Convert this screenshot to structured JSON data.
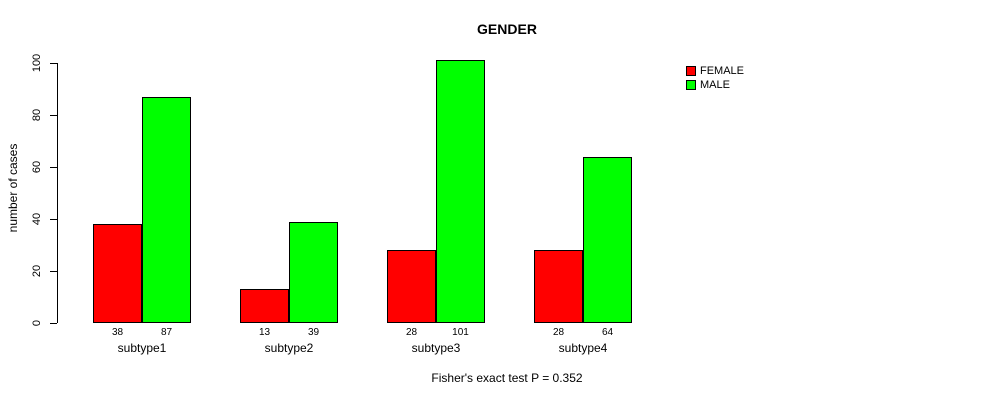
{
  "title": "GENDER",
  "chart_data": {
    "type": "bar",
    "title": "GENDER",
    "categories": [
      "subtype1",
      "subtype2",
      "subtype3",
      "subtype4"
    ],
    "series": [
      {
        "name": "FEMALE",
        "color": "#ff0000",
        "values": [
          38,
          13,
          28,
          28
        ]
      },
      {
        "name": "MALE",
        "color": "#00ff00",
        "values": [
          87,
          39,
          101,
          64
        ]
      }
    ],
    "xlabel": "",
    "ylabel": "number of cases",
    "ylim": [
      0,
      100
    ],
    "yticks": [
      0,
      20,
      40,
      60,
      80,
      100
    ],
    "grid": false,
    "show_bar_values": true,
    "legend_position": "right",
    "annotation": "Fisher's exact test P = 0.352"
  }
}
